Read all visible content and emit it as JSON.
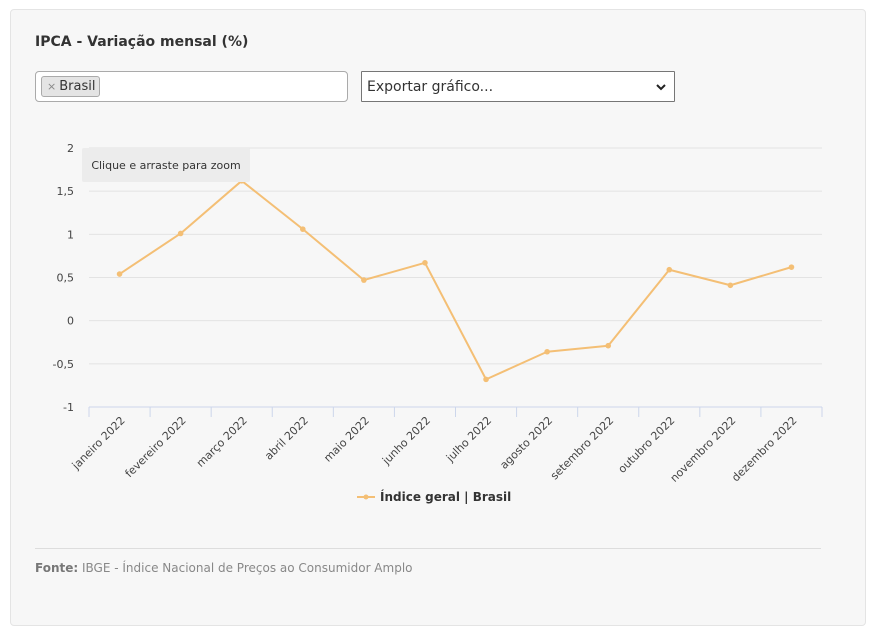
{
  "header": {
    "title": "IPCA - Variação mensal (%)"
  },
  "filter": {
    "chip_label": "Brasil",
    "chip_remove": "×"
  },
  "export": {
    "selected": "Exportar gráfico..."
  },
  "zoom_hint": "Clique e arraste para zoom",
  "footer": {
    "source_label": "Fonte:",
    "source_text": " IBGE - Índice Nacional de Preços ao Consumidor Amplo"
  },
  "chart_data": {
    "type": "line",
    "title": "",
    "xlabel": "",
    "ylabel": "",
    "categories": [
      "janeiro 2022",
      "fevereiro 2022",
      "março 2022",
      "abril 2022",
      "maio 2022",
      "junho 2022",
      "julho 2022",
      "agosto 2022",
      "setembro 2022",
      "outubro 2022",
      "novembro 2022",
      "dezembro 2022"
    ],
    "series": [
      {
        "name": "Índice geral | Brasil",
        "color": "#f4bf75",
        "values": [
          0.54,
          1.01,
          1.62,
          1.06,
          0.47,
          0.67,
          -0.68,
          -0.36,
          -0.29,
          0.59,
          0.41,
          0.62
        ]
      }
    ],
    "ylim": [
      -1,
      2
    ],
    "yticks": [
      -1,
      -0.5,
      0,
      0.5,
      1,
      1.5,
      2
    ],
    "ytick_labels": [
      "-1",
      "-0,5",
      "0",
      "0,5",
      "1",
      "1,5",
      "2"
    ],
    "grid": true,
    "legend_position": "bottom-center"
  }
}
